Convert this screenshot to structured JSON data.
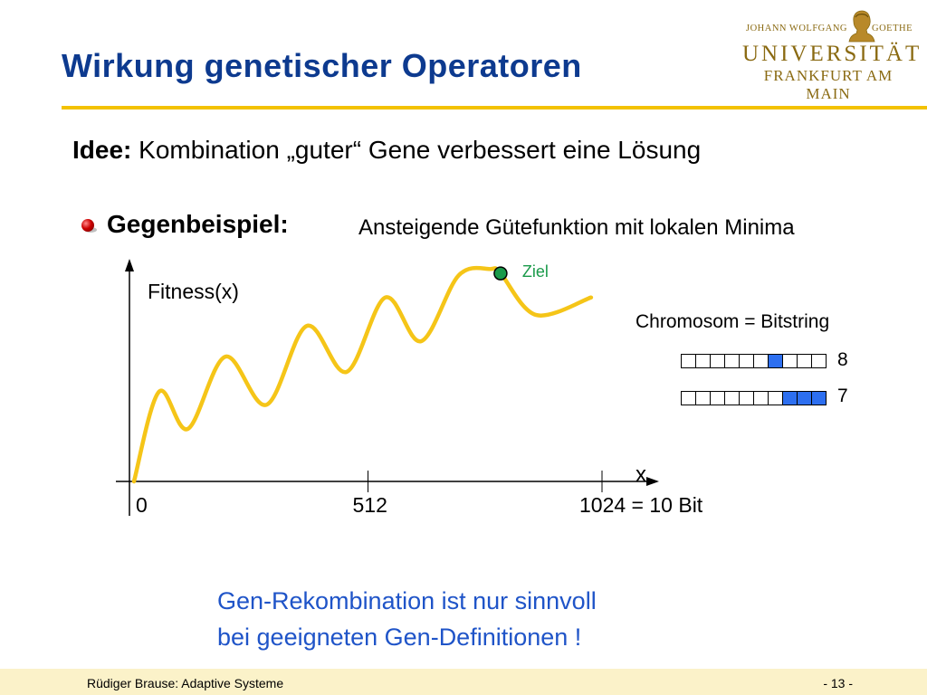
{
  "header": {
    "title": "Wirkung genetischer Operatoren"
  },
  "logo": {
    "line1_left": "JOHANN WOLFGANG",
    "line1_right": "GOETHE",
    "line2": "UNIVERSITÄT",
    "line3": "FRANKFURT AM MAIN",
    "color": "#8a6a12"
  },
  "idea": {
    "label": "Idee:",
    "text": " Kombination „guter“ Gene verbessert eine Lösung"
  },
  "bullet": {
    "label": "Gegenbeispiel:",
    "text": "Ansteigende Gütefunktion mit lokalen Minima"
  },
  "chart_data": {
    "type": "line",
    "ylabel": "Fitness(x)",
    "xlabel": "x",
    "x_ticks": [
      {
        "value": 0,
        "label": "0"
      },
      {
        "value": 512,
        "label": "512"
      },
      {
        "value": 1024,
        "label": "1024 = 10 Bit"
      }
    ],
    "xlim": [
      0,
      1024
    ],
    "annotation": {
      "label": "Ziel",
      "x": 802,
      "color": "#1a9a4a"
    },
    "series": [
      {
        "color": "#f5c518",
        "x": [
          0,
          55,
          118,
          200,
          290,
          378,
          465,
          550,
          628,
          710,
          780,
          802,
          880,
          1000
        ],
        "y": [
          0,
          0.41,
          0.24,
          0.57,
          0.35,
          0.71,
          0.5,
          0.84,
          0.64,
          0.94,
          0.97,
          0.95,
          0.76,
          0.84
        ]
      }
    ]
  },
  "chromosome": {
    "title": "Chromosom = Bitstring",
    "rows": [
      {
        "value": "8",
        "bits": [
          0,
          0,
          0,
          0,
          0,
          0,
          1,
          0,
          0,
          0
        ]
      },
      {
        "value": "7",
        "bits": [
          0,
          0,
          0,
          0,
          0,
          0,
          0,
          1,
          1,
          1
        ]
      }
    ],
    "on_color": "#2d6ff0"
  },
  "conclusion": {
    "line1": "Gen-Rekombination ist nur sinnvoll",
    "line2": "bei geeigneten Gen-Definitionen !"
  },
  "footer": {
    "author": "Rüdiger Brause: Adaptive Systeme",
    "page": "- 13 -"
  }
}
